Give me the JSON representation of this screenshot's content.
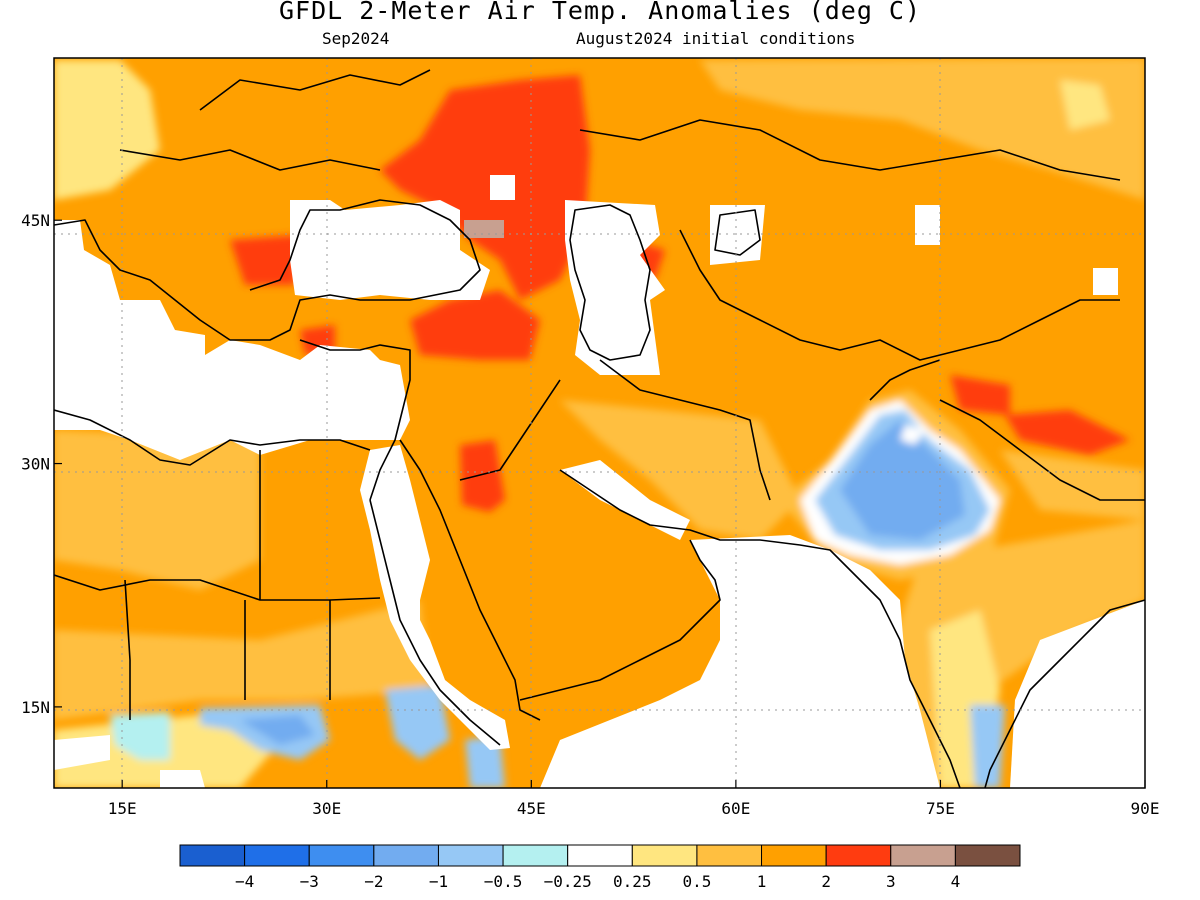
{
  "header": {
    "title": "GFDL 2-Meter Air Temp. Anomalies (deg C)",
    "period": "Sep2024",
    "init": "August2024 initial conditions"
  },
  "map": {
    "lon_range": [
      10,
      90
    ],
    "lat_range": [
      10,
      55
    ],
    "x_ticks": [
      {
        "lon": 15,
        "label": "15E"
      },
      {
        "lon": 30,
        "label": "30E"
      },
      {
        "lon": 45,
        "label": "45E"
      },
      {
        "lon": 60,
        "label": "60E"
      },
      {
        "lon": 75,
        "label": "75E"
      },
      {
        "lon": 90,
        "label": "90E"
      }
    ],
    "y_ticks": [
      {
        "lat": 45,
        "label": "45N"
      },
      {
        "lat": 30,
        "label": "30N"
      },
      {
        "lat": 15,
        "label": "15N"
      }
    ],
    "grid": "dotted"
  },
  "colorbar": {
    "colors": [
      "#1a5fd0",
      "#1f6fe8",
      "#3e8ef0",
      "#72acf0",
      "#96c8f5",
      "#b4f0f0",
      "#ffffff",
      "#ffe680",
      "#ffbf40",
      "#ffa000",
      "#ff3c10",
      "#c8a090",
      "#7a5040"
    ],
    "labels": [
      "−4",
      "−3",
      "−2",
      "−1",
      "−0.5",
      "−0.25",
      "0.25",
      "0.5",
      "1",
      "2",
      "3",
      "4"
    ]
  }
}
